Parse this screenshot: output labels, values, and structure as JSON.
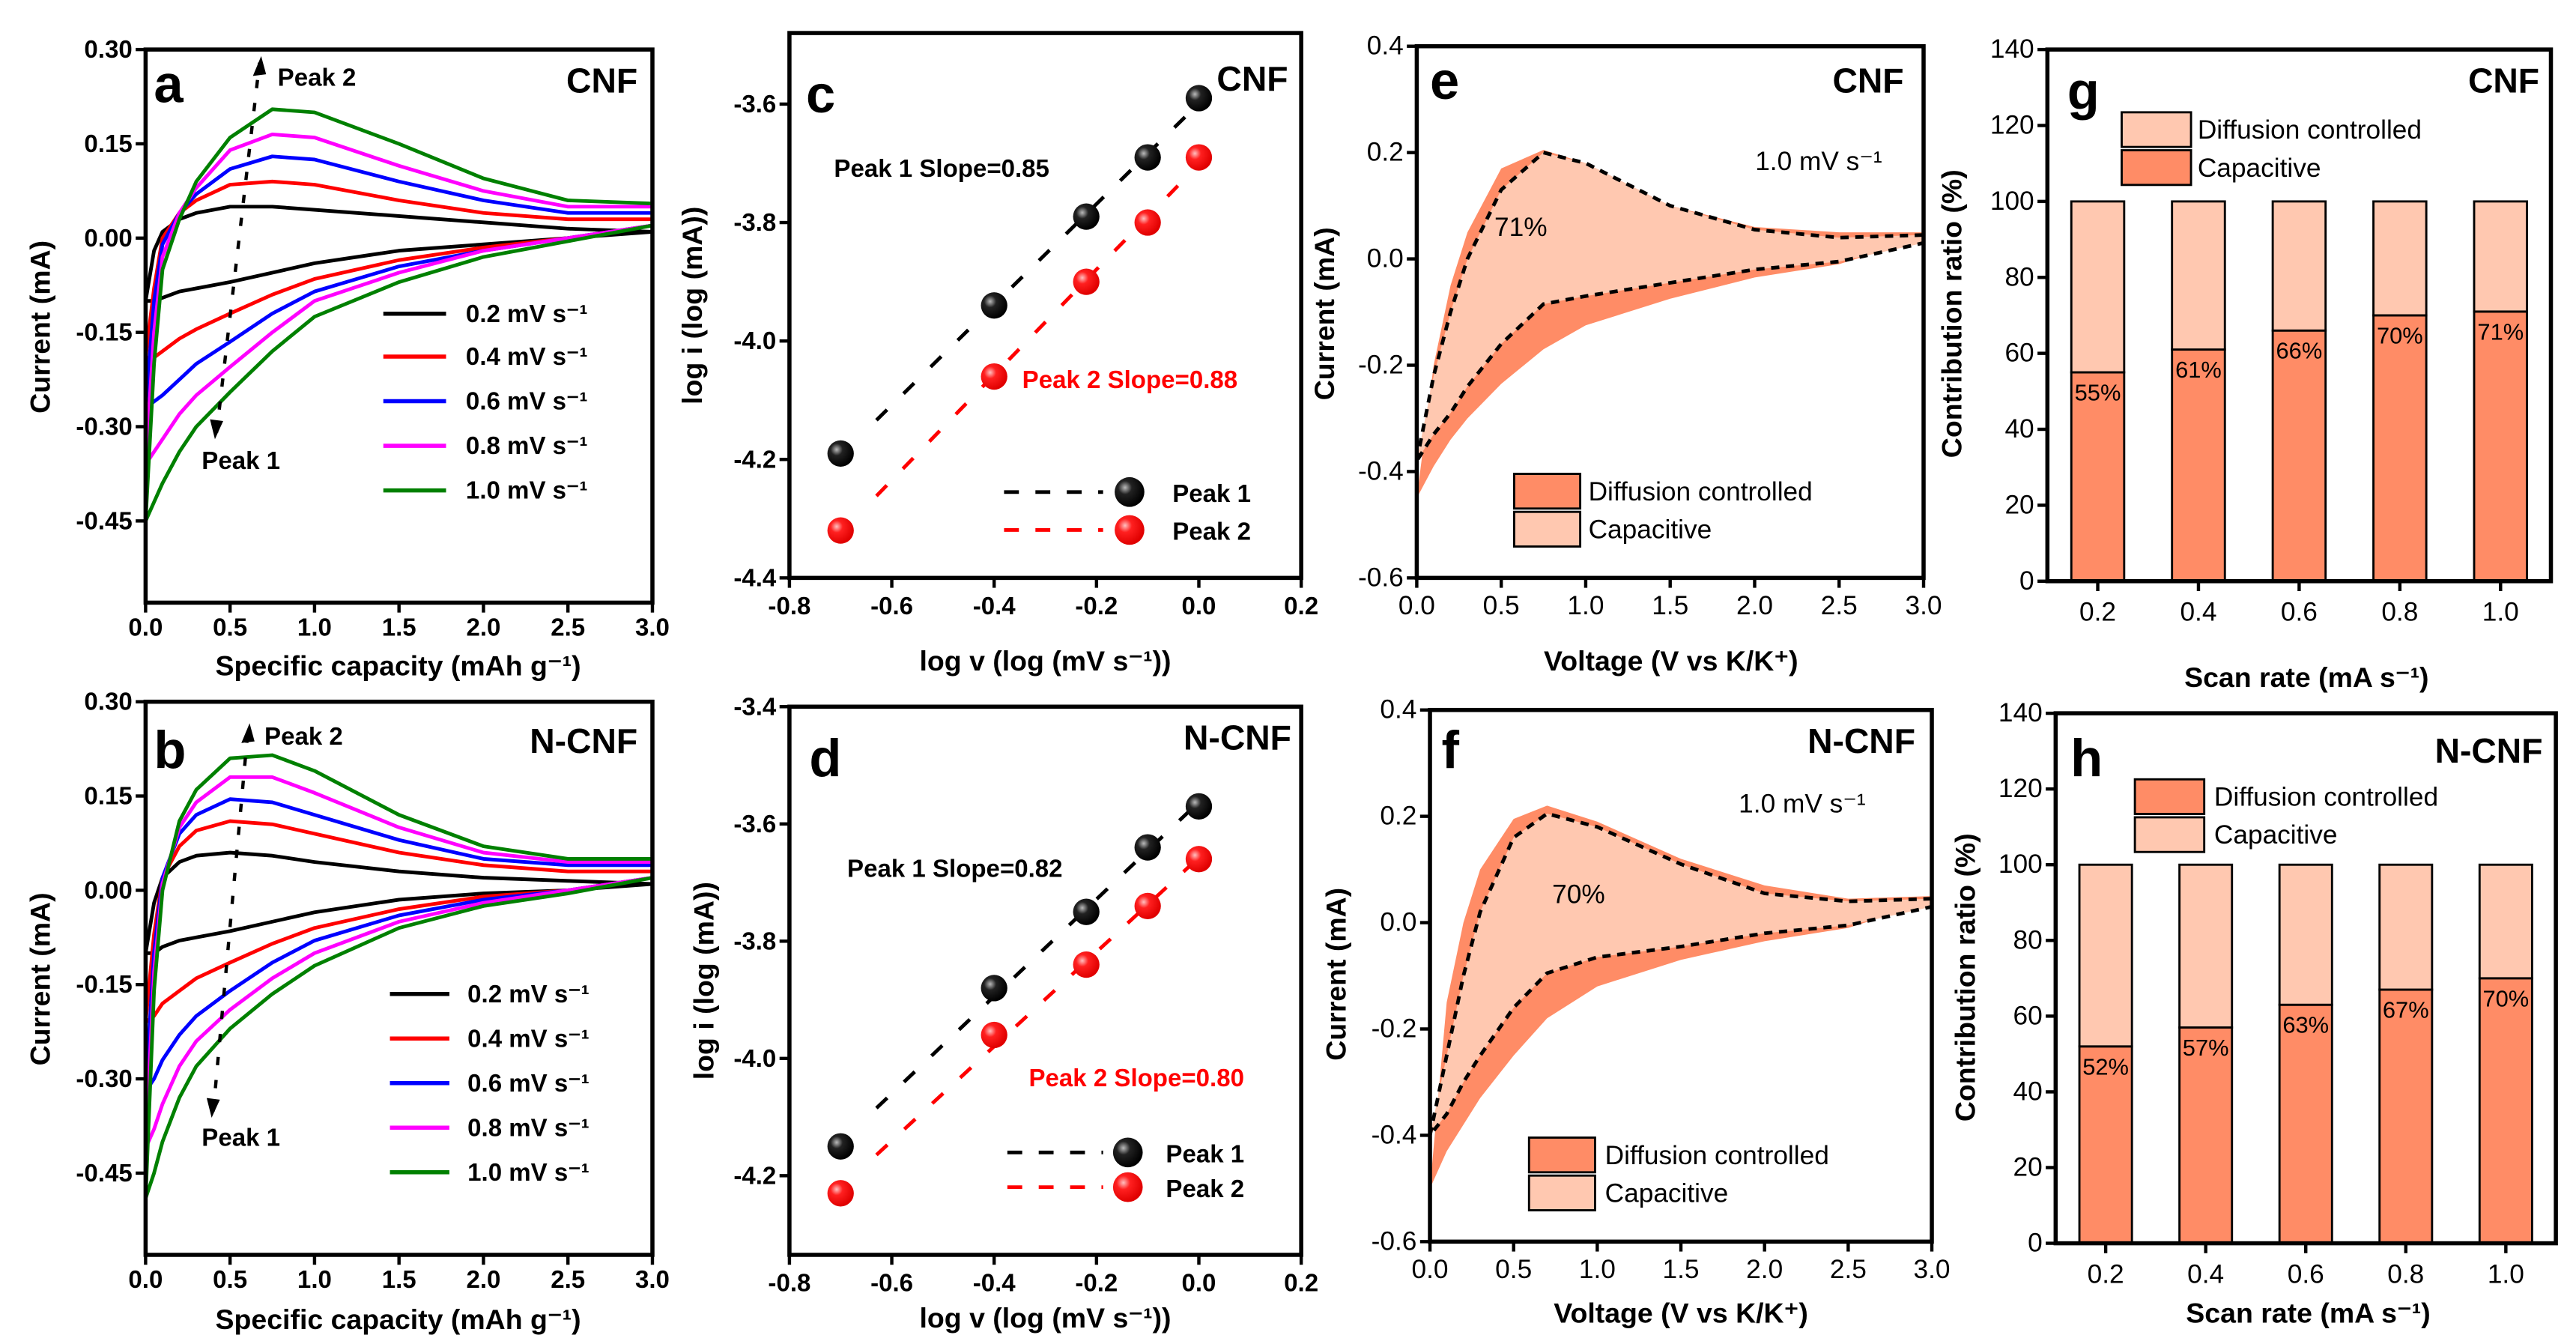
{
  "chart_data": [
    {
      "panel": "a",
      "type": "line",
      "title": "CNF",
      "xlabel": "Specific capacity (mAh g⁻¹)",
      "ylabel": "Current (mA)",
      "xlim": [
        0,
        3.0
      ],
      "ylim": [
        -0.58,
        0.3
      ],
      "xticks": {
        "values": [
          0,
          0.5,
          1.0,
          1.5,
          2.0,
          2.5,
          3.0
        ],
        "labels": [
          "0.0",
          "0.5",
          "1.0",
          "1.5",
          "2.0",
          "2.5",
          "3.0"
        ]
      },
      "yticks": {
        "values": [
          0.3,
          0.15,
          0,
          -0.15,
          -0.3,
          -0.45
        ],
        "labels": [
          "0.30",
          "0.15",
          "0.00",
          "-0.15",
          "-0.30",
          "-0.45"
        ]
      },
      "x": [
        0,
        0.05,
        0.1,
        0.2,
        0.3,
        0.5,
        0.75,
        1.0,
        1.5,
        2.0,
        2.5,
        3.0
      ],
      "series": [
        {
          "name": "0.2 mV s⁻¹",
          "color": "#000000",
          "upper": [
            -0.1,
            -0.02,
            0.01,
            0.03,
            0.04,
            0.05,
            0.05,
            0.045,
            0.035,
            0.025,
            0.015,
            0.01
          ],
          "lower": [
            -0.1,
            -0.1,
            -0.095,
            -0.085,
            -0.08,
            -0.07,
            -0.055,
            -0.04,
            -0.02,
            -0.01,
            0.0,
            0.01
          ]
        },
        {
          "name": "0.4 mV s⁻¹",
          "color": "#ff0000",
          "upper": [
            -0.19,
            -0.08,
            0.0,
            0.04,
            0.06,
            0.085,
            0.09,
            0.085,
            0.06,
            0.04,
            0.03,
            0.03
          ],
          "lower": [
            -0.19,
            -0.19,
            -0.18,
            -0.16,
            -0.145,
            -0.12,
            -0.09,
            -0.065,
            -0.035,
            -0.015,
            0.0,
            0.02
          ]
        },
        {
          "name": "0.6 mV s⁻¹",
          "color": "#0000ff",
          "upper": [
            -0.27,
            -0.1,
            -0.01,
            0.04,
            0.07,
            0.11,
            0.13,
            0.125,
            0.09,
            0.06,
            0.04,
            0.04
          ],
          "lower": [
            -0.27,
            -0.26,
            -0.25,
            -0.225,
            -0.2,
            -0.165,
            -0.12,
            -0.085,
            -0.045,
            -0.02,
            0.0,
            0.02
          ]
        },
        {
          "name": "0.8 mV s⁻¹",
          "color": "#ff00ff",
          "upper": [
            -0.36,
            -0.15,
            -0.03,
            0.04,
            0.08,
            0.14,
            0.165,
            0.16,
            0.115,
            0.075,
            0.05,
            0.05
          ],
          "lower": [
            -0.36,
            -0.34,
            -0.32,
            -0.28,
            -0.25,
            -0.205,
            -0.15,
            -0.1,
            -0.055,
            -0.02,
            0.0,
            0.02
          ]
        },
        {
          "name": "1.0 mV s⁻¹",
          "color": "#008000",
          "upper": [
            -0.45,
            -0.2,
            -0.05,
            0.03,
            0.09,
            0.16,
            0.205,
            0.2,
            0.15,
            0.095,
            0.06,
            0.055
          ],
          "lower": [
            -0.45,
            -0.42,
            -0.39,
            -0.34,
            -0.3,
            -0.245,
            -0.18,
            -0.125,
            -0.07,
            -0.03,
            -0.005,
            0.02
          ]
        }
      ],
      "annotations": [
        "Peak 2",
        "Peak 1"
      ]
    },
    {
      "panel": "b",
      "type": "line",
      "title": "N-CNF",
      "xlabel": "Specific capacity (mAh g⁻¹)",
      "ylabel": "Current (mA)",
      "xlim": [
        0,
        3.0
      ],
      "ylim": [
        -0.58,
        0.3
      ],
      "xticks": {
        "values": [
          0,
          0.5,
          1.0,
          1.5,
          2.0,
          2.5,
          3.0
        ],
        "labels": [
          "0.0",
          "0.5",
          "1.0",
          "1.5",
          "2.0",
          "2.5",
          "3.0"
        ]
      },
      "yticks": {
        "values": [
          0.3,
          0.15,
          0,
          -0.15,
          -0.3,
          -0.45
        ],
        "labels": [
          "0.30",
          "0.15",
          "0.00",
          "-0.15",
          "-0.30",
          "-0.45"
        ]
      },
      "x": [
        0,
        0.05,
        0.1,
        0.2,
        0.3,
        0.5,
        0.75,
        1.0,
        1.5,
        2.0,
        2.5,
        3.0
      ],
      "series": [
        {
          "name": "0.2 mV s⁻¹",
          "color": "#000000",
          "upper": [
            -0.1,
            -0.02,
            0.02,
            0.045,
            0.055,
            0.06,
            0.055,
            0.045,
            0.03,
            0.02,
            0.015,
            0.01
          ],
          "lower": [
            -0.1,
            -0.1,
            -0.09,
            -0.08,
            -0.075,
            -0.065,
            -0.05,
            -0.035,
            -0.015,
            -0.005,
            0.0,
            0.01
          ]
        },
        {
          "name": "0.4 mV s⁻¹",
          "color": "#ff0000",
          "upper": [
            -0.21,
            -0.07,
            0.02,
            0.07,
            0.095,
            0.11,
            0.105,
            0.09,
            0.06,
            0.04,
            0.03,
            0.03
          ],
          "lower": [
            -0.21,
            -0.2,
            -0.18,
            -0.16,
            -0.14,
            -0.115,
            -0.085,
            -0.06,
            -0.03,
            -0.01,
            0.0,
            0.02
          ]
        },
        {
          "name": "0.6 mV s⁻¹",
          "color": "#0000ff",
          "upper": [
            -0.32,
            -0.1,
            0.02,
            0.09,
            0.12,
            0.145,
            0.14,
            0.12,
            0.08,
            0.05,
            0.04,
            0.04
          ],
          "lower": [
            -0.32,
            -0.3,
            -0.27,
            -0.23,
            -0.2,
            -0.16,
            -0.115,
            -0.08,
            -0.04,
            -0.015,
            0.0,
            0.02
          ]
        },
        {
          "name": "0.8 mV s⁻¹",
          "color": "#ff00ff",
          "upper": [
            -0.41,
            -0.13,
            0.01,
            0.1,
            0.14,
            0.18,
            0.18,
            0.155,
            0.1,
            0.06,
            0.045,
            0.045
          ],
          "lower": [
            -0.41,
            -0.38,
            -0.34,
            -0.28,
            -0.24,
            -0.19,
            -0.14,
            -0.1,
            -0.05,
            -0.02,
            0.0,
            0.02
          ]
        },
        {
          "name": "1.0 mV s⁻¹",
          "color": "#008000",
          "upper": [
            -0.49,
            -0.16,
            0.0,
            0.11,
            0.16,
            0.21,
            0.215,
            0.19,
            0.12,
            0.07,
            0.05,
            0.05
          ],
          "lower": [
            -0.49,
            -0.45,
            -0.4,
            -0.33,
            -0.28,
            -0.22,
            -0.165,
            -0.12,
            -0.06,
            -0.025,
            -0.005,
            0.02
          ]
        }
      ],
      "annotations": [
        "Peak 2",
        "Peak 1"
      ]
    },
    {
      "panel": "c",
      "type": "scatter",
      "title": "CNF",
      "xlabel": "log v (log (mV s⁻¹))",
      "ylabel": "log i (log (mA))",
      "xlim": [
        -0.8,
        0.2
      ],
      "ylim": [
        -4.4,
        -3.48
      ],
      "xticks": {
        "values": [
          -0.8,
          -0.6,
          -0.4,
          -0.2,
          0,
          0.2
        ],
        "labels": [
          "-0.8",
          "-0.6",
          "-0.4",
          "-0.2",
          "0.0",
          "0.2"
        ]
      },
      "yticks": {
        "values": [
          -3.6,
          -3.8,
          -4.0,
          -4.2,
          -4.4
        ],
        "labels": [
          "-3.6",
          "-3.8",
          "-4.0",
          "-4.2",
          "-4.4"
        ]
      },
      "series": [
        {
          "name": "Peak 1",
          "color": "#000000",
          "x": [
            -0.7,
            -0.4,
            -0.22,
            -0.1,
            0.0
          ],
          "y": [
            -4.19,
            -3.94,
            -3.79,
            -3.69,
            -3.59
          ],
          "slope": 0.85
        },
        {
          "name": "Peak 2",
          "color": "#ff0000",
          "x": [
            -0.7,
            -0.4,
            -0.22,
            -0.1,
            0.0
          ],
          "y": [
            -4.32,
            -4.06,
            -3.9,
            -3.8,
            -3.69
          ],
          "slope": 0.88
        }
      ],
      "annotations": [
        "Peak 1  Slope=0.85",
        "Peak 2  Slope=0.88"
      ]
    },
    {
      "panel": "d",
      "type": "scatter",
      "title": "N-CNF",
      "xlabel": "log v (log (mV s⁻¹))",
      "ylabel": "log i (log (mA))",
      "xlim": [
        -0.8,
        0.2
      ],
      "ylim": [
        -4.335,
        -3.4
      ],
      "xticks": {
        "values": [
          -0.8,
          -0.6,
          -0.4,
          -0.2,
          0,
          0.2
        ],
        "labels": [
          "-0.8",
          "-0.6",
          "-0.4",
          "-0.2",
          "0.0",
          "0.2"
        ]
      },
      "yticks": {
        "values": [
          -3.4,
          -3.6,
          -3.8,
          -4.0,
          -4.2
        ],
        "labels": [
          "-3.4",
          "-3.6",
          "-3.8",
          "-4.0",
          "-4.2"
        ]
      },
      "series": [
        {
          "name": "Peak 1",
          "color": "#000000",
          "x": [
            -0.7,
            -0.4,
            -0.22,
            -0.1,
            0.0
          ],
          "y": [
            -4.15,
            -3.88,
            -3.75,
            -3.64,
            -3.57
          ],
          "slope": 0.82
        },
        {
          "name": "Peak 2",
          "color": "#ff0000",
          "x": [
            -0.7,
            -0.4,
            -0.22,
            -0.1,
            0.0
          ],
          "y": [
            -4.23,
            -3.96,
            -3.84,
            -3.74,
            -3.66
          ],
          "slope": 0.8
        }
      ],
      "annotations": [
        "Peak 1  Slope=0.82",
        "Peak 2  Slope=0.80"
      ]
    },
    {
      "panel": "e",
      "type": "area",
      "title": "CNF",
      "xlabel": "Voltage (V vs K/K⁺)",
      "ylabel": "Current (mA)",
      "xlim": [
        0,
        3.0
      ],
      "ylim": [
        -0.6,
        0.4
      ],
      "xticks": {
        "values": [
          0,
          0.5,
          1.0,
          1.5,
          2.0,
          2.5,
          3.0
        ],
        "labels": [
          "0.0",
          "0.5",
          "1.0",
          "1.5",
          "2.0",
          "2.5",
          "3.0"
        ]
      },
      "yticks": {
        "values": [
          0.4,
          0.2,
          0,
          -0.2,
          -0.4,
          -0.6
        ],
        "labels": [
          "0.4",
          "0.2",
          "0.0",
          "-0.2",
          "-0.4",
          "-0.6"
        ]
      },
      "x": [
        0,
        0.1,
        0.2,
        0.3,
        0.5,
        0.75,
        1.0,
        1.5,
        2.0,
        2.5,
        3.0
      ],
      "series": [
        {
          "name": "Diffusion controlled",
          "color": "#ff8c66",
          "upper": [
            -0.45,
            -0.2,
            -0.05,
            0.05,
            0.17,
            0.205,
            0.18,
            0.1,
            0.06,
            0.05,
            0.05
          ],
          "lower": [
            -0.45,
            -0.39,
            -0.34,
            -0.3,
            -0.235,
            -0.17,
            -0.125,
            -0.075,
            -0.035,
            -0.01,
            0.04
          ]
        },
        {
          "name": "Capacitive",
          "color": "#ffc8b0",
          "upper": [
            -0.38,
            -0.22,
            -0.1,
            0.0,
            0.13,
            0.2,
            0.18,
            0.1,
            0.055,
            0.04,
            0.045
          ],
          "lower": [
            -0.38,
            -0.33,
            -0.29,
            -0.24,
            -0.16,
            -0.085,
            -0.07,
            -0.045,
            -0.02,
            -0.005,
            0.03
          ]
        }
      ],
      "annotations": [
        "1.0 mV s⁻¹",
        "71%"
      ]
    },
    {
      "panel": "f",
      "type": "area",
      "title": "N-CNF",
      "xlabel": "Voltage (V vs K/K⁺)",
      "ylabel": "Current (mA)",
      "xlim": [
        0,
        3.0
      ],
      "ylim": [
        -0.6,
        0.4
      ],
      "xticks": {
        "values": [
          0,
          0.5,
          1.0,
          1.5,
          2.0,
          2.5,
          3.0
        ],
        "labels": [
          "0.0",
          "0.5",
          "1.0",
          "1.5",
          "2.0",
          "2.5",
          "3.0"
        ]
      },
      "yticks": {
        "values": [
          0.4,
          0.2,
          0,
          -0.2,
          -0.4,
          -0.6
        ],
        "labels": [
          "0.4",
          "0.2",
          "0.0",
          "-0.2",
          "-0.4",
          "-0.6"
        ]
      },
      "x": [
        0,
        0.1,
        0.2,
        0.3,
        0.5,
        0.7,
        1.0,
        1.5,
        2.0,
        2.5,
        3.0
      ],
      "series": [
        {
          "name": "Diffusion controlled",
          "color": "#ff8c66",
          "upper": [
            -0.5,
            -0.15,
            0.0,
            0.1,
            0.195,
            0.22,
            0.19,
            0.12,
            0.07,
            0.045,
            0.05
          ],
          "lower": [
            -0.5,
            -0.43,
            -0.38,
            -0.33,
            -0.25,
            -0.18,
            -0.12,
            -0.07,
            -0.035,
            -0.01,
            0.04
          ]
        },
        {
          "name": "Capacitive",
          "color": "#ffc8b0",
          "upper": [
            -0.4,
            -0.25,
            -0.1,
            0.02,
            0.16,
            0.205,
            0.18,
            0.11,
            0.055,
            0.04,
            0.045
          ],
          "lower": [
            -0.4,
            -0.36,
            -0.3,
            -0.25,
            -0.16,
            -0.095,
            -0.065,
            -0.045,
            -0.02,
            -0.005,
            0.03
          ]
        }
      ],
      "annotations": [
        "1.0 mV s⁻¹",
        "70%"
      ]
    },
    {
      "panel": "g",
      "type": "bar",
      "title": "CNF",
      "xlabel": "Scan rate (mA s⁻¹)",
      "ylabel": "Contribution ratio (%)",
      "ylim": [
        0,
        140
      ],
      "yticks": {
        "values": [
          0,
          20,
          40,
          60,
          80,
          100,
          120,
          140
        ],
        "labels": [
          "0",
          "20",
          "40",
          "60",
          "80",
          "100",
          "120",
          "140"
        ]
      },
      "categories": [
        "0.2",
        "0.4",
        "0.6",
        "0.8",
        "1.0"
      ],
      "stack_bottom": {
        "values": [
          55,
          61,
          66,
          70,
          71
        ],
        "color": "#ff8c66"
      },
      "stack_top": {
        "values": [
          45,
          39,
          34,
          30,
          29
        ],
        "color": "#ffc8b0"
      },
      "data_labels": [
        "55%",
        "61%",
        "66%",
        "70%",
        "71%"
      ],
      "legend": [
        {
          "label": "Diffusion controlled",
          "color": "#ffc8b0"
        },
        {
          "label": "Capacitive",
          "color": "#ff8c66"
        }
      ]
    },
    {
      "panel": "h",
      "type": "bar",
      "title": "N-CNF",
      "xlabel": "Scan rate (mA s⁻¹)",
      "ylabel": "Contribution ratio (%)",
      "ylim": [
        0,
        140
      ],
      "yticks": {
        "values": [
          0,
          20,
          40,
          60,
          80,
          100,
          120,
          140
        ],
        "labels": [
          "0",
          "20",
          "40",
          "60",
          "80",
          "100",
          "120",
          "140"
        ]
      },
      "categories": [
        "0.2",
        "0.4",
        "0.6",
        "0.8",
        "1.0"
      ],
      "stack_bottom": {
        "values": [
          52,
          57,
          63,
          67,
          70
        ],
        "color": "#ff8c66"
      },
      "stack_top": {
        "values": [
          48,
          43,
          37,
          33,
          30
        ],
        "color": "#ffc8b0"
      },
      "data_labels": [
        "52%",
        "57%",
        "63%",
        "67%",
        "70%"
      ],
      "legend": [
        {
          "label": "Diffusion controlled",
          "color": "#ff8c66"
        },
        {
          "label": "Capacitive",
          "color": "#ffc8b0"
        }
      ]
    }
  ]
}
